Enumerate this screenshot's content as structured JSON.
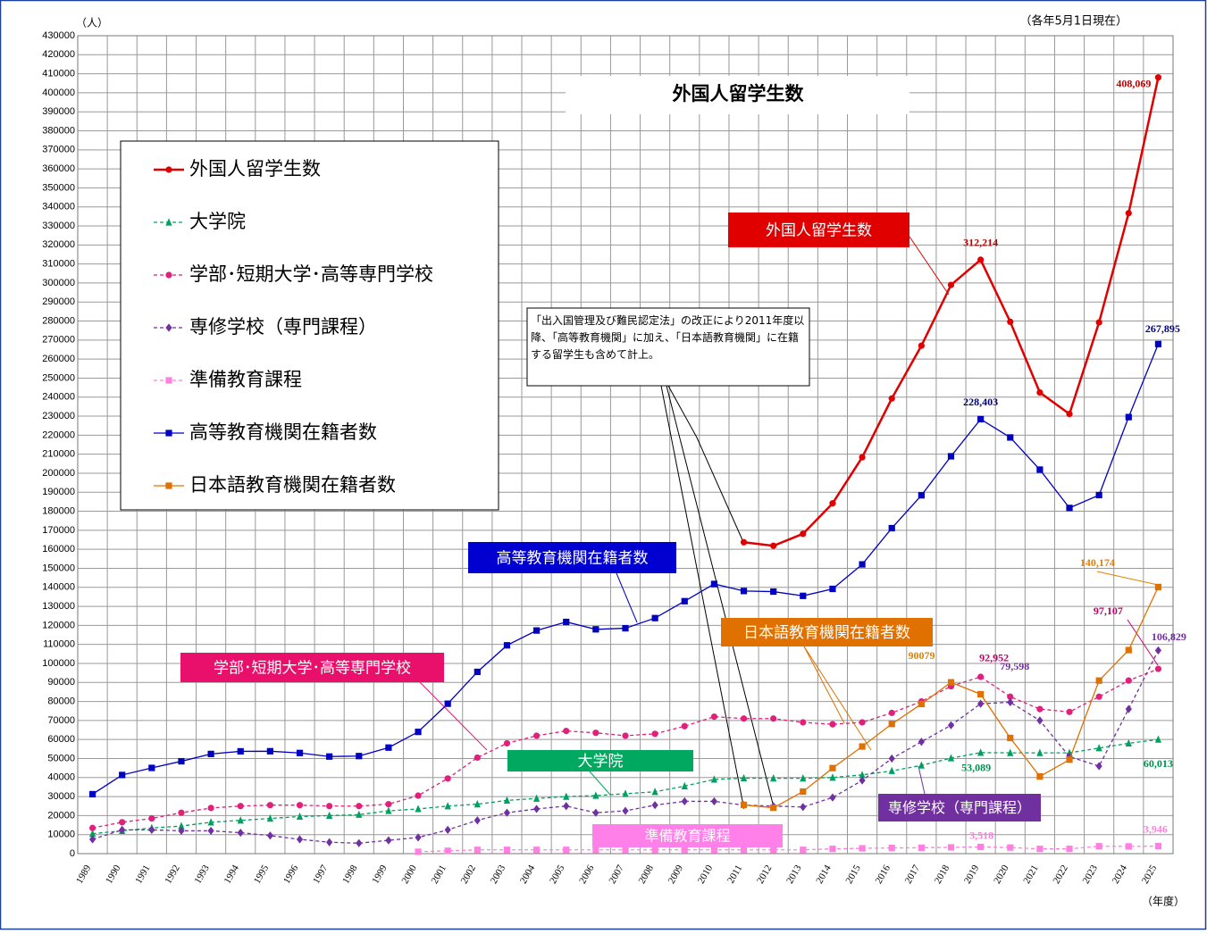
{
  "chart_data": {
    "type": "line",
    "title": "外国人留学生数",
    "y_unit": "（人）",
    "date_note": "（各年5月1日現在）",
    "x_unit": "（年度）",
    "annotation": "「出入国管理及び難民認定法」の改正により2011年度以降、「高等教育機関」に加え、「日本語教育機関」に在籍する留学生も含めて計上。",
    "categories": [
      "1989",
      "1990",
      "1991",
      "1992",
      "1993",
      "1994",
      "1995",
      "1996",
      "1997",
      "1998",
      "1999",
      "2000",
      "2001",
      "2002",
      "2003",
      "2004",
      "2005",
      "2006",
      "2007",
      "2008",
      "2009",
      "2010",
      "2011",
      "2012",
      "2013",
      "2014",
      "2015",
      "2016",
      "2017",
      "2018",
      "2019",
      "2020",
      "2021",
      "2022",
      "2023",
      "2024",
      "2025"
    ],
    "ylim": [
      0,
      430000
    ],
    "yticks": [
      0,
      10000,
      20000,
      30000,
      40000,
      50000,
      60000,
      70000,
      80000,
      90000,
      100000,
      110000,
      120000,
      130000,
      140000,
      150000,
      160000,
      170000,
      180000,
      190000,
      200000,
      210000,
      220000,
      230000,
      240000,
      250000,
      260000,
      270000,
      280000,
      290000,
      300000,
      310000,
      320000,
      330000,
      340000,
      350000,
      360000,
      370000,
      380000,
      390000,
      400000,
      410000,
      420000,
      430000
    ],
    "grid": true,
    "legend": "upper left",
    "series": [
      {
        "name": "外国人留学生数",
        "color": "#e00000",
        "label_color": "#c00000",
        "marker": "circle",
        "line_style": "solid",
        "values": [
          null,
          null,
          null,
          null,
          null,
          null,
          null,
          null,
          null,
          null,
          null,
          null,
          null,
          null,
          null,
          null,
          null,
          null,
          null,
          null,
          null,
          null,
          163697,
          161848,
          168145,
          184155,
          208379,
          239287,
          267042,
          298980,
          312214,
          279597,
          242444,
          231146,
          279274,
          336708,
          408069
        ],
        "value_labels": [
          null,
          null,
          null,
          null,
          null,
          null,
          null,
          null,
          null,
          null,
          null,
          null,
          null,
          null,
          null,
          null,
          null,
          null,
          null,
          null,
          null,
          null,
          null,
          null,
          null,
          null,
          null,
          null,
          null,
          null,
          "312,214",
          null,
          null,
          null,
          null,
          null,
          "408,069"
        ]
      },
      {
        "name": "大学院",
        "color": "#00a060",
        "label_color": "#009050",
        "marker": "triangle",
        "line_style": "dashed",
        "values": [
          10500,
          12000,
          13500,
          14500,
          16500,
          17500,
          18500,
          19500,
          20000,
          20500,
          22500,
          23500,
          25000,
          26000,
          28000,
          29000,
          30000,
          30500,
          31500,
          32500,
          35500,
          39000,
          39700,
          39600,
          39600,
          40000,
          41400,
          43500,
          46400,
          50200,
          53089,
          53000,
          53000,
          53000,
          55500,
          58000,
          60013
        ],
        "value_labels": [
          null,
          null,
          null,
          null,
          null,
          null,
          null,
          null,
          null,
          null,
          null,
          null,
          null,
          null,
          null,
          null,
          null,
          null,
          null,
          null,
          null,
          null,
          null,
          null,
          null,
          null,
          null,
          null,
          null,
          null,
          "53,089",
          null,
          null,
          null,
          null,
          null,
          "60,013"
        ]
      },
      {
        "name": "学部･短期大学･高等専門学校",
        "color": "#e0207a",
        "label_color": "#c0006a",
        "marker": "circle",
        "line_style": "dashed",
        "values": [
          13500,
          16500,
          18500,
          21500,
          24000,
          25000,
          25500,
          25500,
          25000,
          25000,
          26000,
          30500,
          39500,
          50500,
          58000,
          62000,
          64500,
          63500,
          62000,
          63000,
          67000,
          72000,
          71000,
          71000,
          69000,
          68000,
          69000,
          74000,
          80000,
          88000,
          92952,
          82500,
          76000,
          74500,
          82500,
          91000,
          97107
        ],
        "value_labels": [
          null,
          null,
          null,
          null,
          null,
          null,
          null,
          null,
          null,
          null,
          null,
          null,
          null,
          null,
          null,
          null,
          null,
          null,
          null,
          null,
          null,
          null,
          null,
          null,
          null,
          null,
          null,
          null,
          null,
          null,
          "92,952",
          null,
          null,
          null,
          null,
          null,
          "97,107"
        ]
      },
      {
        "name": "専修学校（専門課程）",
        "color": "#7030a0",
        "label_color": "#7030a0",
        "marker": "diamond",
        "line_style": "dashed",
        "values": [
          7500,
          12500,
          12500,
          12000,
          12000,
          11000,
          9500,
          7500,
          6000,
          5500,
          7000,
          8500,
          12500,
          17500,
          21500,
          23500,
          25000,
          21500,
          22500,
          25500,
          27500,
          27500,
          25500,
          25000,
          24500,
          29500,
          38500,
          50000,
          58800,
          67500,
          78800,
          79598,
          70000,
          51000,
          46000,
          76000,
          106829
        ],
        "value_labels": [
          null,
          null,
          null,
          null,
          null,
          null,
          null,
          null,
          null,
          null,
          null,
          null,
          null,
          null,
          null,
          null,
          null,
          null,
          null,
          null,
          null,
          null,
          null,
          null,
          null,
          null,
          null,
          null,
          null,
          null,
          null,
          "79,598",
          null,
          null,
          null,
          null,
          "106,829"
        ]
      },
      {
        "name": "準備教育課程",
        "color": "#ff80e0",
        "label_color": "#ff80e0",
        "marker": "square",
        "line_style": "dashed",
        "values": [
          null,
          null,
          null,
          null,
          null,
          null,
          null,
          null,
          null,
          null,
          null,
          1000,
          1500,
          2000,
          2000,
          2000,
          2000,
          2000,
          2000,
          2000,
          2000,
          2000,
          2000,
          2000,
          2000,
          2500,
          2800,
          3000,
          3100,
          3300,
          3518,
          3200,
          2500,
          2500,
          3900,
          3800,
          3946
        ],
        "value_labels": [
          null,
          null,
          null,
          null,
          null,
          null,
          null,
          null,
          null,
          null,
          null,
          null,
          null,
          null,
          null,
          null,
          null,
          null,
          null,
          null,
          null,
          null,
          null,
          null,
          null,
          null,
          null,
          null,
          null,
          null,
          "3,518",
          null,
          null,
          null,
          null,
          null,
          "3,946"
        ]
      },
      {
        "name": "高等教育機関在籍者数",
        "color": "#0000c0",
        "label_color": "#000080",
        "marker": "square",
        "line_style": "solid",
        "values": [
          31251,
          41347,
          45066,
          48561,
          52405,
          53787,
          53847,
          52921,
          51047,
          51298,
          55755,
          64011,
          78812,
          95550,
          109508,
          117302,
          121812,
          117927,
          118498,
          123829,
          132720,
          141774,
          138075,
          137756,
          135519,
          139185,
          152062,
          171122,
          188384,
          208901,
          228403,
          218783,
          201877,
          181741,
          188500,
          229500,
          267895
        ],
        "value_labels": [
          null,
          null,
          null,
          null,
          null,
          null,
          null,
          null,
          null,
          null,
          null,
          null,
          null,
          null,
          null,
          null,
          null,
          null,
          null,
          null,
          null,
          null,
          null,
          null,
          null,
          null,
          null,
          null,
          null,
          null,
          "228,403",
          null,
          null,
          null,
          null,
          null,
          "267,895"
        ]
      },
      {
        "name": "日本語教育機関在籍者数",
        "color": "#e07000",
        "label_color": "#e08000",
        "marker": "square",
        "line_style": "solid",
        "values": [
          null,
          null,
          null,
          null,
          null,
          null,
          null,
          null,
          null,
          null,
          null,
          null,
          null,
          null,
          null,
          null,
          null,
          null,
          null,
          null,
          null,
          null,
          25622,
          24092,
          32626,
          44970,
          56317,
          68165,
          78658,
          90079,
          83811,
          60804,
          40567,
          49405,
          90984,
          107000,
          140174
        ],
        "value_labels": [
          null,
          null,
          null,
          null,
          null,
          null,
          null,
          null,
          null,
          null,
          null,
          null,
          null,
          null,
          null,
          null,
          null,
          null,
          null,
          null,
          null,
          null,
          null,
          null,
          null,
          null,
          null,
          null,
          null,
          90079,
          null,
          null,
          null,
          null,
          null,
          null,
          "140,174"
        ]
      }
    ]
  }
}
